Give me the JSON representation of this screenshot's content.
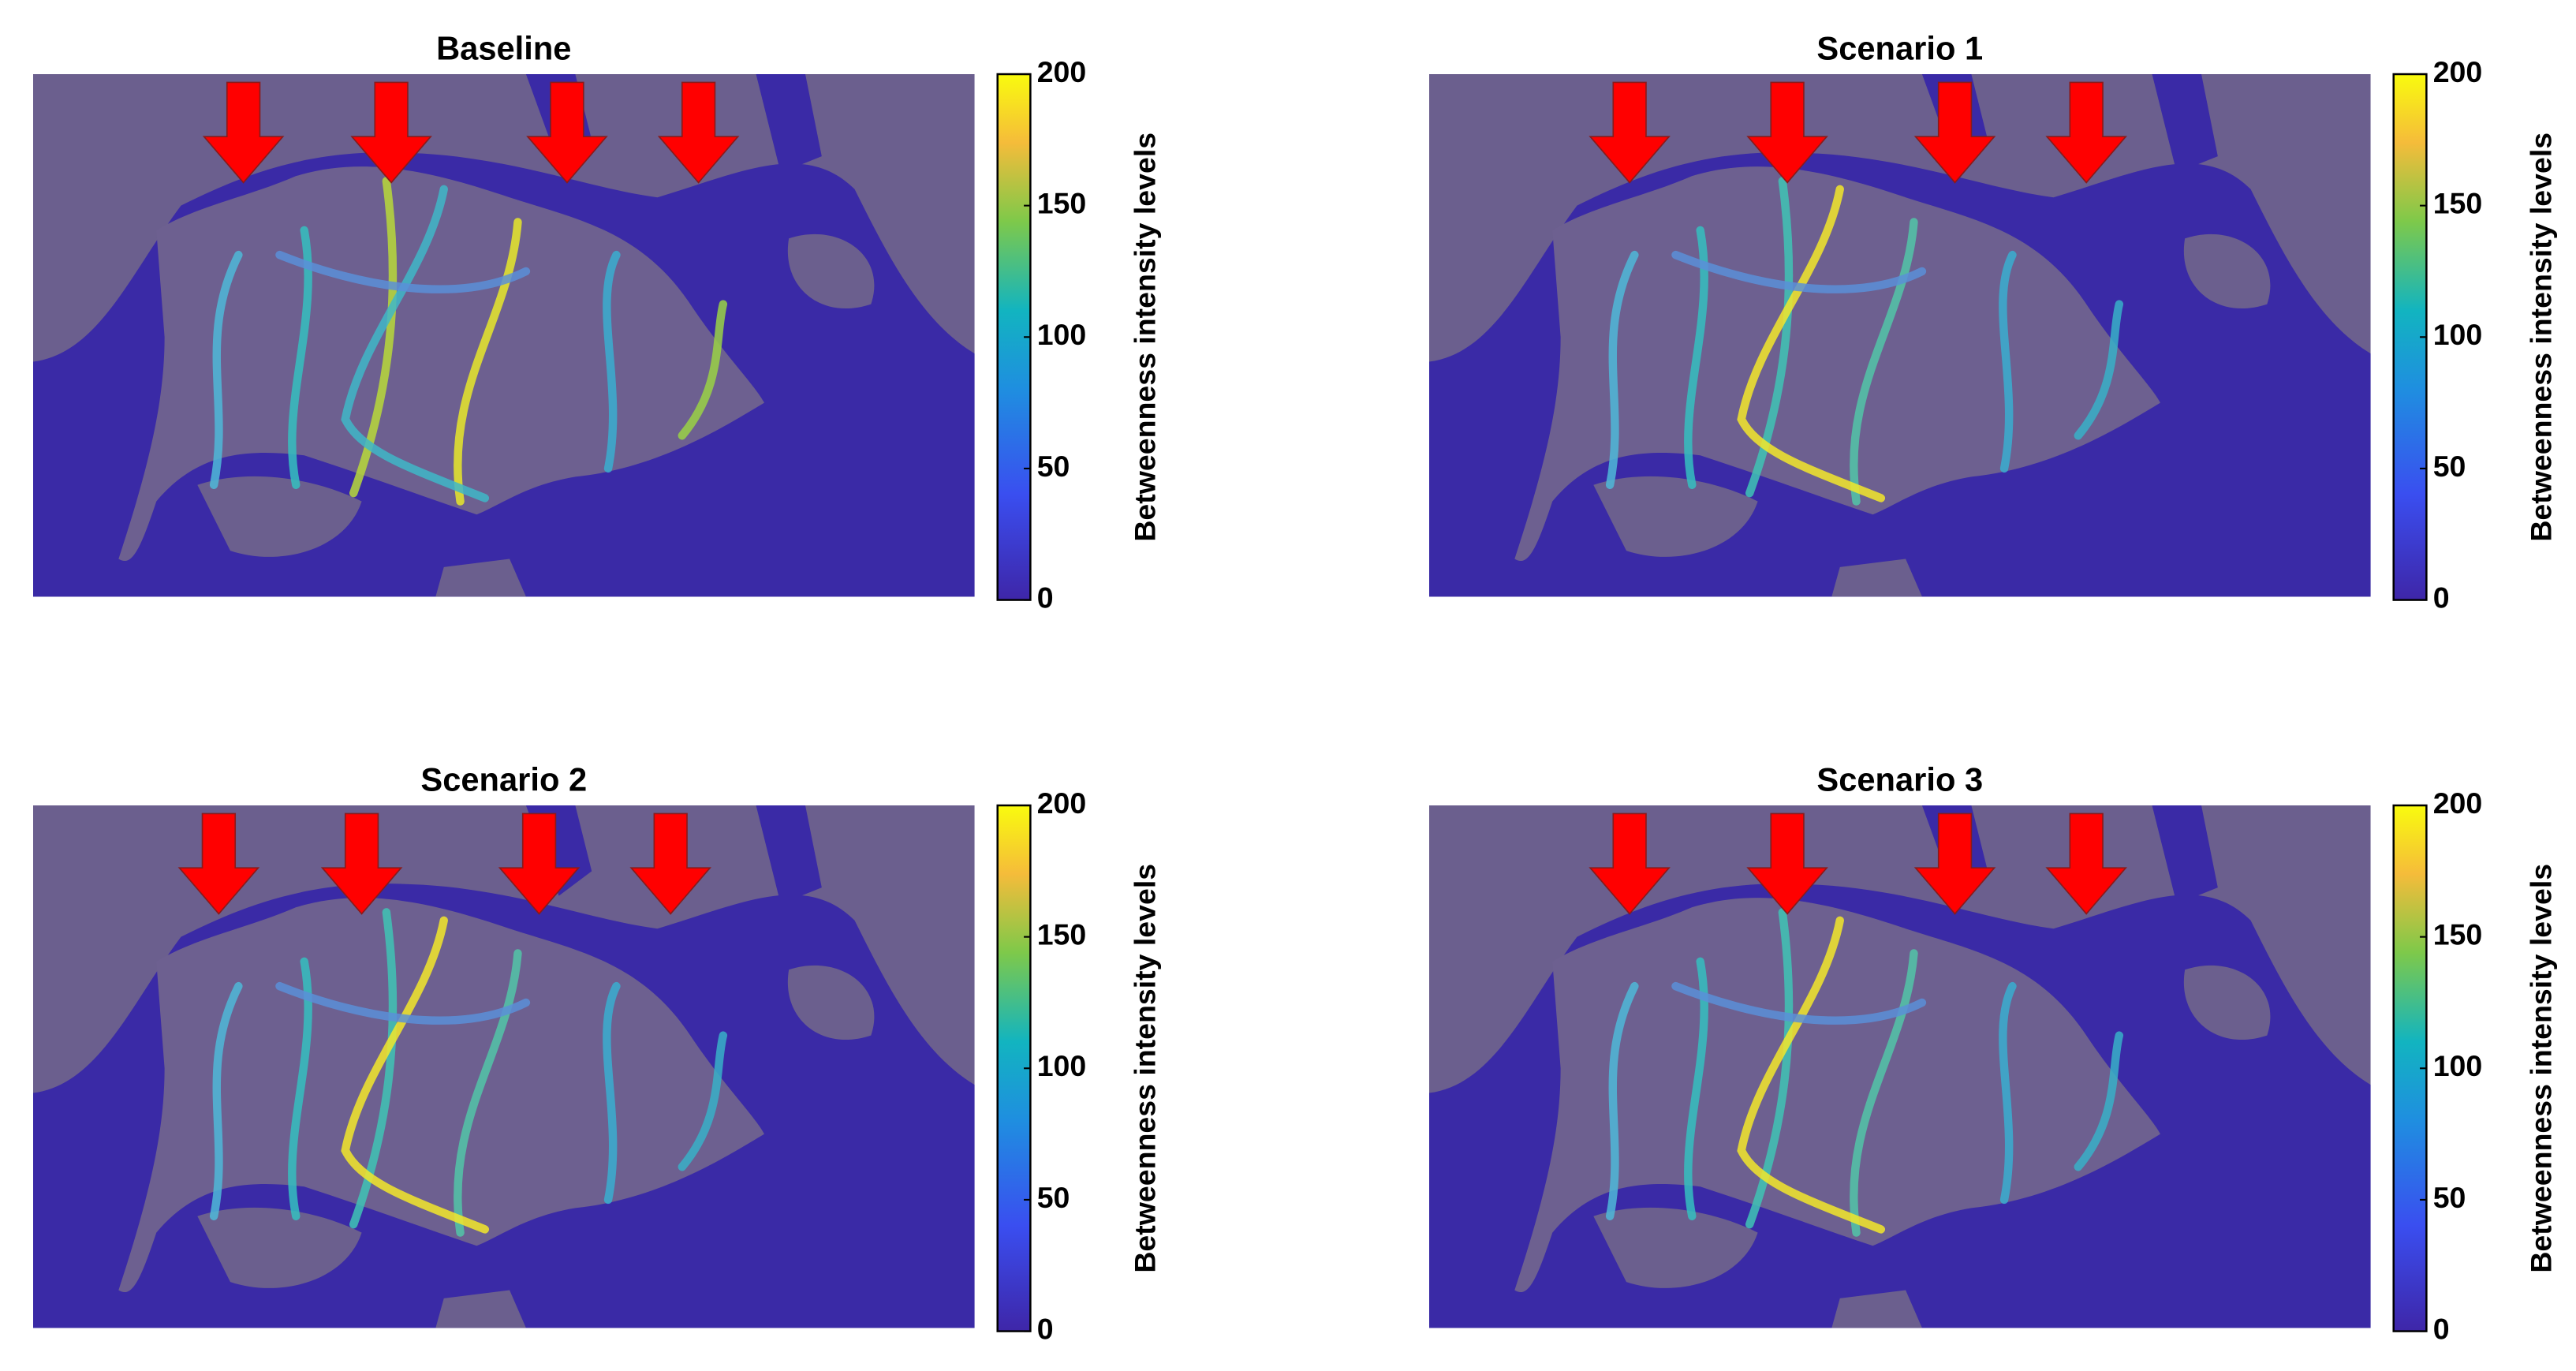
{
  "chart_data": [
    {
      "type": "map",
      "title": "Baseline",
      "colorbar_label": "Betweenness intensity levels",
      "clim": [
        0,
        200
      ],
      "cticks": [
        0,
        50,
        100,
        150,
        200
      ]
    },
    {
      "type": "map",
      "title": "Scenario 1",
      "colorbar_label": "Betweenness intensity levels",
      "clim": [
        0,
        200
      ],
      "cticks": [
        0,
        50,
        100,
        150,
        200
      ]
    },
    {
      "type": "map",
      "title": "Scenario 2",
      "colorbar_label": "Betweenness intensity levels",
      "clim": [
        0,
        200
      ],
      "cticks": [
        0,
        50,
        100,
        150,
        200
      ]
    },
    {
      "type": "map",
      "title": "Scenario 3",
      "colorbar_label": "Betweenness intensity levels",
      "clim": [
        0,
        200
      ],
      "cticks": [
        0,
        50,
        100,
        150,
        200
      ]
    }
  ]
}
